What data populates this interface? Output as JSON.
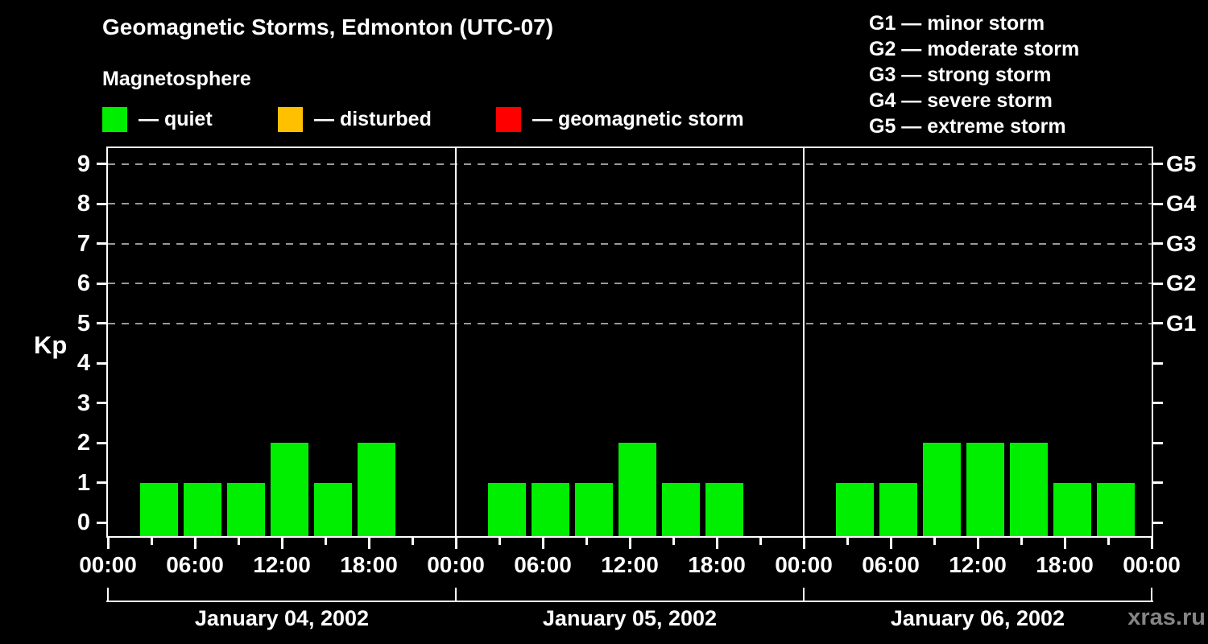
{
  "header": {
    "title": "Geomagnetic Storms, Edmonton (UTC-07)",
    "subtitle": "Magnetosphere",
    "legend": [
      {
        "name": "quiet",
        "label": "— quiet",
        "color": "#00ee00"
      },
      {
        "name": "disturbed",
        "label": "— disturbed",
        "color": "#ffc000"
      },
      {
        "name": "storm",
        "label": "— geomagnetic storm",
        "color": "#ff0000"
      }
    ],
    "storm_scale": [
      "G1 — minor storm",
      "G2 — moderate storm",
      "G3 — strong storm",
      "G4 — severe storm",
      "G5 — extreme storm"
    ]
  },
  "watermark": "xras.ru",
  "chart_data": {
    "type": "bar",
    "title": "Geomagnetic Storms, Edmonton (UTC-07)",
    "ylabel": "Kp",
    "ylim": [
      0,
      9
    ],
    "yticks": [
      0,
      1,
      2,
      3,
      4,
      5,
      6,
      7,
      8,
      9
    ],
    "gridlines_at_kp": [
      5,
      6,
      7,
      8,
      9
    ],
    "right_axis_labels": [
      {
        "kp": 5,
        "label": "G1"
      },
      {
        "kp": 6,
        "label": "G2"
      },
      {
        "kp": 7,
        "label": "G3"
      },
      {
        "kp": 8,
        "label": "G4"
      },
      {
        "kp": 9,
        "label": "G5"
      }
    ],
    "x_major_tick_labels_cycle": [
      "00:00",
      "06:00",
      "12:00",
      "18:00"
    ],
    "hours_per_day": 24,
    "interval_hours": 3,
    "interval_start_hours_local": [
      2,
      5,
      8,
      11,
      14,
      17,
      20
    ],
    "days": [
      {
        "date": "January 04, 2002",
        "kp": [
          1,
          1,
          1,
          2,
          1,
          2,
          0
        ]
      },
      {
        "date": "January 05, 2002",
        "kp": [
          1,
          1,
          1,
          2,
          1,
          1,
          0
        ]
      },
      {
        "date": "January 06, 2002",
        "kp": [
          1,
          1,
          2,
          2,
          2,
          1,
          1
        ]
      }
    ],
    "colors": {
      "quiet": "#00ee00",
      "disturbed": "#ffc000",
      "storm": "#ff0000"
    }
  }
}
